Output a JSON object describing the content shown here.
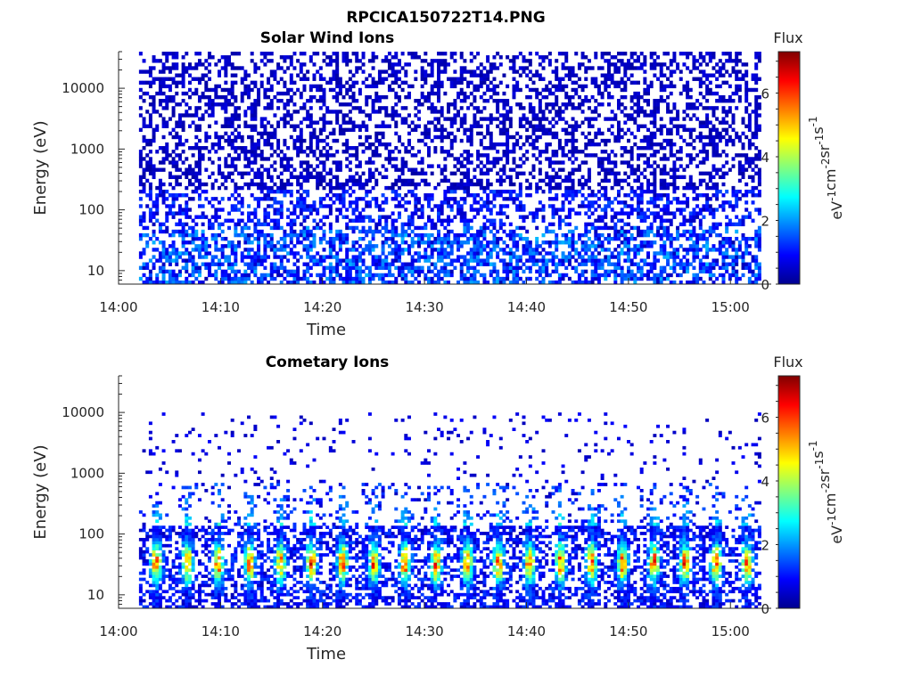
{
  "figure_title": "RPCICA150722T14.PNG",
  "colors": {
    "axis": "#262626",
    "colormap": "jet"
  },
  "chart_data": [
    {
      "type": "heatmap",
      "title": "Solar Wind Ions",
      "xlabel": "Time",
      "ylabel": "Energy (eV)",
      "x_ticks": [
        "14:00",
        "14:10",
        "14:20",
        "14:30",
        "14:40",
        "14:50",
        "15:00"
      ],
      "x_range": [
        "14:00",
        "15:04"
      ],
      "y_scale": "log",
      "y_ticks": [
        "10",
        "100",
        "1000",
        "10000"
      ],
      "y_range": [
        6,
        40000
      ],
      "data_time_range": [
        "14:02",
        "15:03"
      ],
      "energy_range": [
        6,
        40000
      ],
      "pattern": "broadband scattered flux from ~10 eV to ~30000 eV, strongest at low energies (10-50 eV)",
      "colorbar": {
        "title": "Flux",
        "label": "eV^-1 cm^-2 sr^-1 s^-1",
        "range": [
          0,
          7.3
        ],
        "ticks": [
          "0",
          "2",
          "4",
          "6"
        ],
        "colormap": "jet"
      }
    },
    {
      "type": "heatmap",
      "title": "Cometary Ions",
      "xlabel": "Time",
      "ylabel": "Energy (eV)",
      "x_ticks": [
        "14:00",
        "14:10",
        "14:20",
        "14:30",
        "14:40",
        "14:50",
        "15:00"
      ],
      "x_range": [
        "14:00",
        "15:04"
      ],
      "y_scale": "log",
      "y_ticks": [
        "10",
        "100",
        "1000",
        "10000"
      ],
      "y_range": [
        6,
        40000
      ],
      "data_time_range": [
        "14:02",
        "15:03"
      ],
      "energy_range": [
        6,
        10000
      ],
      "pattern": "periodic bursts of high flux (up to ~7) centered near 20-60 eV about every 3 minutes; sparse low flux up to ~10000 eV",
      "colorbar": {
        "title": "Flux",
        "label": "eV^-1 cm^-2 sr^-1 s^-1",
        "range": [
          0,
          7.3
        ],
        "ticks": [
          "0",
          "2",
          "4",
          "6"
        ],
        "colormap": "jet"
      }
    }
  ]
}
